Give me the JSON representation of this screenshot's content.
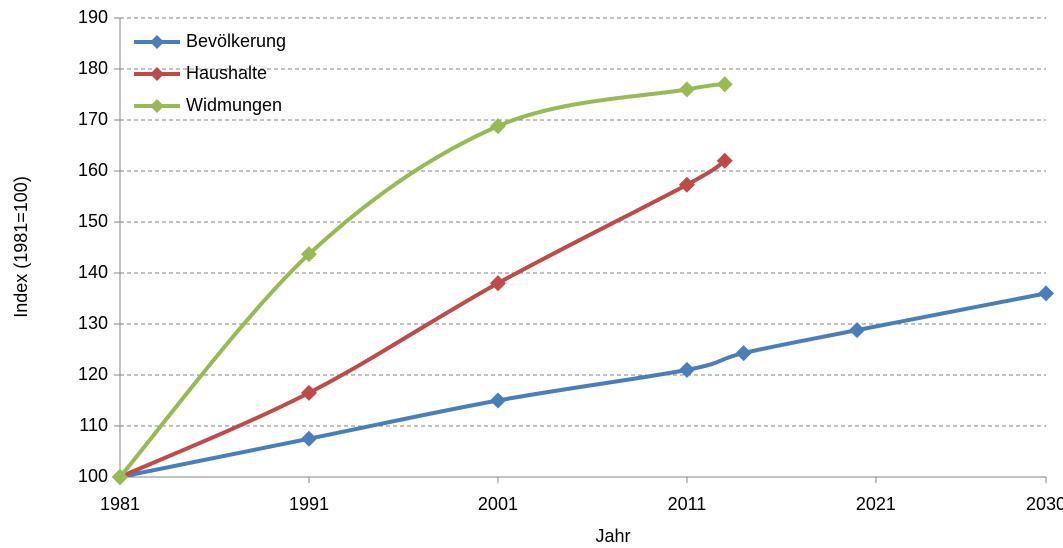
{
  "chart_data": {
    "type": "line",
    "x_label": "Jahr",
    "y_label": "Index (1981=100)",
    "xlim": [
      1981,
      2030
    ],
    "xticks": [
      1981,
      1991,
      2001,
      2011,
      2021,
      2030
    ],
    "ylim": [
      100,
      190
    ],
    "yticks": [
      100,
      110,
      120,
      130,
      140,
      150,
      160,
      170,
      180,
      190
    ],
    "grid": true,
    "legend": "upper left",
    "smooth": true,
    "series": [
      {
        "name": "Bevölkerung",
        "color": "#4a7ebb",
        "x": [
          1981,
          1991,
          2001,
          2011,
          2014,
          2020,
          2030
        ],
        "values": [
          100,
          107.5,
          115,
          121,
          124.3,
          128.8,
          136
        ]
      },
      {
        "name": "Haushalte",
        "color": "#be4b48",
        "x": [
          1981,
          1991,
          2001,
          2011,
          2013
        ],
        "values": [
          100,
          116.5,
          138,
          157.3,
          162
        ]
      },
      {
        "name": "Widmungen",
        "color": "#98b954",
        "x": [
          1981,
          1991,
          2001,
          2011,
          2013
        ],
        "values": [
          100,
          143.7,
          168.8,
          176,
          177
        ]
      }
    ]
  }
}
